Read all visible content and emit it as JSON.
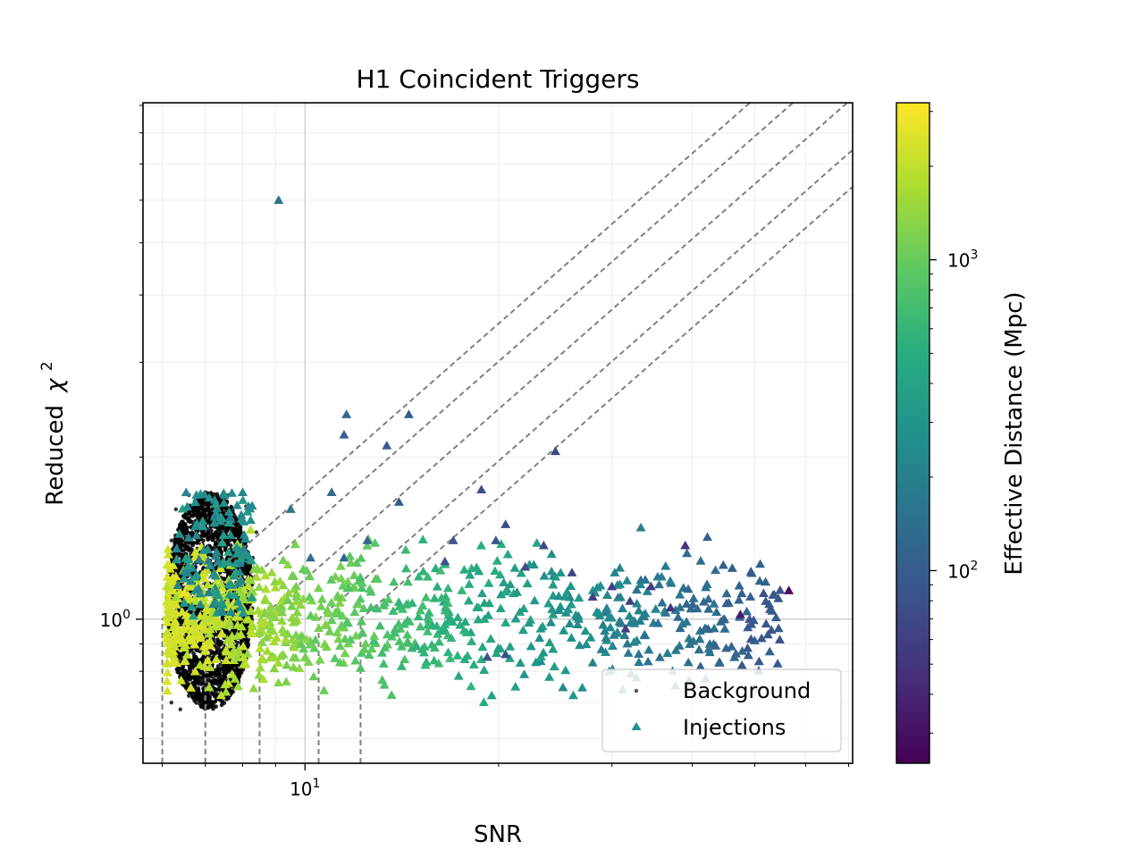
{
  "chart_data": {
    "type": "scatter",
    "title": "H1 Coincident Triggers",
    "xlabel": "SNR",
    "ylabel": "Reduced",
    "ylabel_symbol": "χ",
    "ylabel_exponent": "2",
    "xscale": "log",
    "yscale": "log",
    "xlim": [
      5.6,
      71
    ],
    "ylim": [
      0.54,
      9.1
    ],
    "grid": true,
    "legend_position": "lower-right",
    "x_major_ticks": [
      {
        "value": 10,
        "base": "10",
        "exponent": "1"
      }
    ],
    "y_major_ticks": [
      {
        "value": 1,
        "base": "10",
        "exponent": "0"
      }
    ],
    "colorbar": {
      "label": "Effective Distance (Mpc)",
      "scale": "log",
      "range": [
        24,
        3200
      ],
      "colormap": "viridis",
      "ticks": [
        {
          "value": 100,
          "base": "10",
          "exponent": "2"
        },
        {
          "value": 1000,
          "base": "10",
          "exponent": "3"
        }
      ]
    },
    "threshold_lines": [
      {
        "snr_threshold": 6.0
      },
      {
        "snr_threshold": 7.0
      },
      {
        "snr_threshold": 8.5
      },
      {
        "snr_threshold": 10.5
      },
      {
        "snr_threshold": 12.2
      }
    ],
    "series": [
      {
        "name": "Background",
        "marker": "dot",
        "color": "#000000",
        "region": {
          "snr": [
            6.1,
            8.3
          ],
          "reduced_chi2": [
            0.68,
            1.72
          ]
        },
        "points": [
          [
            6.2,
            0.7
          ],
          [
            6.4,
            0.68
          ],
          [
            6.6,
            0.72
          ],
          [
            6.8,
            0.7
          ],
          [
            7.0,
            0.74
          ],
          [
            7.2,
            0.78
          ],
          [
            7.4,
            0.82
          ],
          [
            7.6,
            0.86
          ],
          [
            7.8,
            0.92
          ],
          [
            8.0,
            1.0
          ],
          [
            8.2,
            1.1
          ],
          [
            8.3,
            1.3
          ],
          [
            8.4,
            1.45
          ],
          [
            8.1,
            1.62
          ],
          [
            7.6,
            1.7
          ],
          [
            7.0,
            1.72
          ],
          [
            6.6,
            1.7
          ],
          [
            6.3,
            1.6
          ],
          [
            6.2,
            1.4
          ],
          [
            6.1,
            1.2
          ]
        ]
      },
      {
        "name": "Injections",
        "marker": "triangle",
        "color": "#21918c",
        "points": [
          {
            "snr": 9.1,
            "chi2": 6.0,
            "dist": 150
          },
          {
            "snr": 11.6,
            "chi2": 2.4,
            "dist": 120
          },
          {
            "snr": 14.5,
            "chi2": 2.4,
            "dist": 100
          },
          {
            "snr": 11.5,
            "chi2": 2.2,
            "dist": 110
          },
          {
            "snr": 13.4,
            "chi2": 2.1,
            "dist": 100
          },
          {
            "snr": 24.5,
            "chi2": 2.05,
            "dist": 70
          },
          {
            "snr": 11.0,
            "chi2": 1.72,
            "dist": 130
          },
          {
            "snr": 18.8,
            "chi2": 1.74,
            "dist": 80
          },
          {
            "snr": 14.0,
            "chi2": 1.65,
            "dist": 100
          },
          {
            "snr": 9.5,
            "chi2": 1.6,
            "dist": 160
          },
          {
            "snr": 20.5,
            "chi2": 1.5,
            "dist": 75
          },
          {
            "snr": 19.8,
            "chi2": 1.4,
            "dist": 80
          },
          {
            "snr": 17.0,
            "chi2": 1.4,
            "dist": 90
          },
          {
            "snr": 23.5,
            "chi2": 1.37,
            "dist": 70
          },
          {
            "snr": 39.0,
            "chi2": 1.37,
            "dist": 50
          },
          {
            "snr": 12.5,
            "chi2": 1.4,
            "dist": 120
          },
          {
            "snr": 10.2,
            "chi2": 1.3,
            "dist": 140
          },
          {
            "snr": 11.5,
            "chi2": 1.3,
            "dist": 120
          },
          {
            "snr": 16.5,
            "chi2": 1.28,
            "dist": 90
          },
          {
            "snr": 22.0,
            "chi2": 1.25,
            "dist": 72
          },
          {
            "snr": 26.0,
            "chi2": 1.22,
            "dist": 65
          },
          {
            "snr": 30.0,
            "chi2": 1.15,
            "dist": 60
          },
          {
            "snr": 34.5,
            "chi2": 1.15,
            "dist": 55
          },
          {
            "snr": 56.5,
            "chi2": 1.13,
            "dist": 28
          },
          {
            "snr": 28.0,
            "chi2": 1.1,
            "dist": 62
          },
          {
            "snr": 32.0,
            "chi2": 1.08,
            "dist": 58
          },
          {
            "snr": 37.0,
            "chi2": 1.05,
            "dist": 52
          },
          {
            "snr": 47.5,
            "chi2": 1.02,
            "dist": 35
          },
          {
            "snr": 20.5,
            "chi2": 0.86,
            "dist": 75
          },
          {
            "snr": 19.2,
            "chi2": 0.85,
            "dist": 80
          },
          {
            "snr": 31.5,
            "chi2": 0.96,
            "dist": 58
          },
          {
            "snr": 6.3,
            "chi2": 1.1,
            "dist": 1600
          },
          {
            "snr": 6.1,
            "chi2": 1.15,
            "dist": 1900
          },
          {
            "snr": 6.5,
            "chi2": 1.12,
            "dist": 2800
          },
          {
            "snr": 7.1,
            "chi2": 1.68,
            "dist": 300
          },
          {
            "snr": 7.5,
            "chi2": 1.7,
            "dist": 260
          },
          {
            "snr": 8.0,
            "chi2": 1.72,
            "dist": 220
          }
        ]
      }
    ]
  }
}
